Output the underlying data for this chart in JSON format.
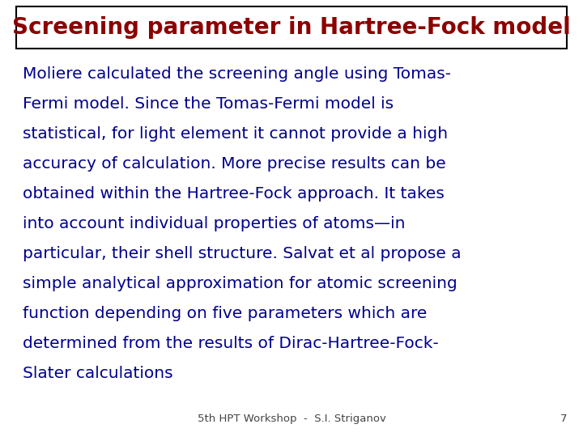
{
  "title": "Screening parameter in Hartree-Fock model",
  "title_color": "#8B0000",
  "body_color": "#00008B",
  "footer_text": "5th HPT Workshop  -  S.I. Striganov",
  "footer_page": "7",
  "footer_color": "#444444",
  "background_color": "#ffffff",
  "title_box_color": "#ffffff",
  "title_box_edge": "#000000",
  "body_fontsize": 14.5,
  "title_fontsize": 20,
  "footer_fontsize": 9.5,
  "body_lines": [
    "Moliere calculated the screening angle using Tomas-",
    "Fermi model. Since the Tomas-Fermi model is",
    "statistical, for light element it cannot provide a high",
    "accuracy of calculation. More precise results can be",
    "obtained within the Hartree-Fock approach. It takes",
    "into account individual properties of atoms—in",
    "particular, their shell structure. Salvat et al propose a",
    "simple analytical approximation for atomic screening",
    "function depending on five parameters which are",
    "determined from the results of Dirac-Hartree-Fock-",
    "Slater calculations"
  ]
}
